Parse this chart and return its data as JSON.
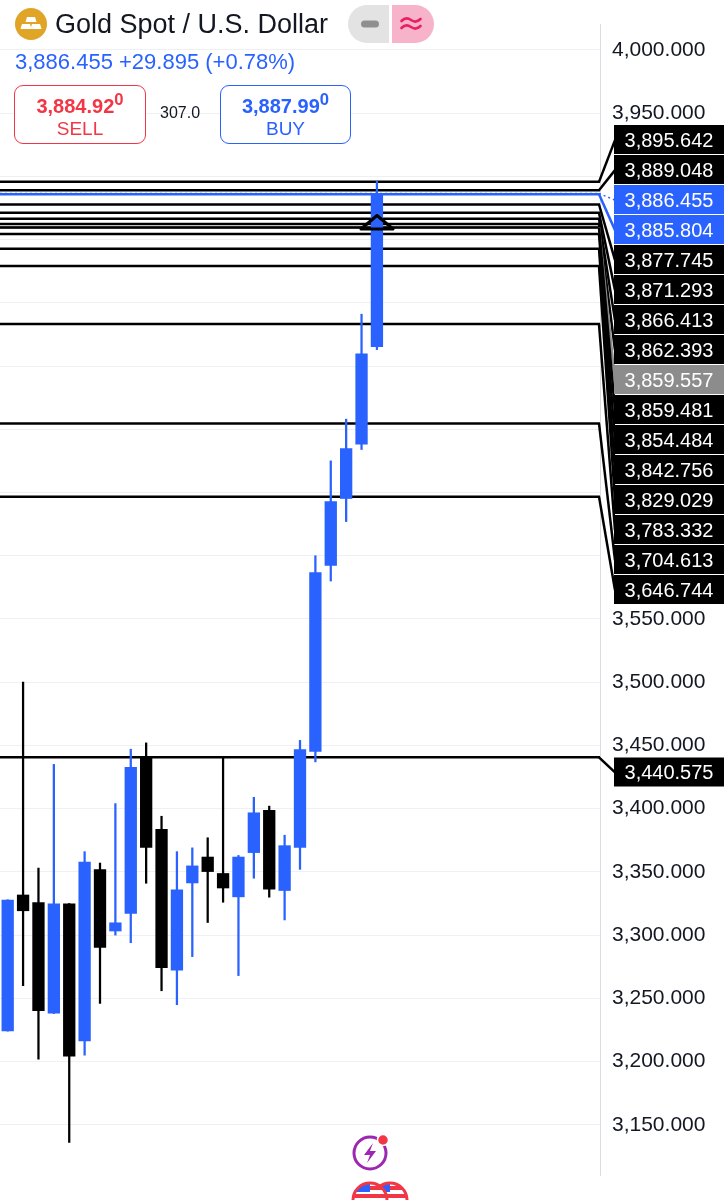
{
  "chart_data": {
    "type": "candlestick",
    "title": "Gold Spot / U.S. Dollar",
    "subtitle": "3,886.455 +29.895 (+0.78%)",
    "annotations": [
      "3,884.92$^{0}$",
      "SELL",
      "307.0",
      "3,887.99$^{0}$",
      "BUY"
    ],
    "categories": [
      null,
      null,
      null,
      null,
      null,
      null,
      null,
      null,
      null,
      null,
      null,
      null,
      null,
      null,
      null,
      null,
      null,
      null,
      null,
      null,
      null,
      null,
      null,
      null,
      null,
      null,
      null,
      null,
      null,
      null,
      null,
      null,
      null,
      null,
      null,
      null,
      null,
      null,
      null
    ],
    "ohlc": [
      [
        3224,
        3328,
        3224,
        3328
      ],
      [
        3332,
        3500,
        3260,
        3319
      ],
      [
        3326,
        3353,
        3202,
        3240
      ],
      [
        3238,
        3435,
        3238,
        3325
      ],
      [
        3325,
        3325,
        3136,
        3204
      ],
      [
        3216,
        3366,
        3205,
        3358
      ],
      [
        3352,
        3357,
        3246,
        3290
      ],
      [
        3303,
        3404,
        3300,
        3310
      ],
      [
        3317,
        3447,
        3294,
        3433
      ],
      [
        3441,
        3452,
        3341,
        3369
      ],
      [
        3384,
        3394,
        3256,
        3274
      ],
      [
        3272,
        3366,
        3245,
        3336
      ],
      [
        3341,
        3369,
        3283,
        3355
      ],
      [
        3362,
        3377,
        3310,
        3350
      ],
      [
        3349,
        3440,
        3326,
        3337
      ],
      [
        3330,
        3363,
        3268,
        3362
      ],
      [
        3365,
        3409,
        3345,
        3397
      ],
      [
        3399,
        3402,
        3330,
        3336
      ],
      [
        3335,
        3379,
        3312,
        3371
      ],
      [
        3369,
        3454,
        3352,
        3447
      ],
      [
        3445,
        3600,
        3437,
        3587
      ],
      [
        3592,
        3675,
        3580,
        3643
      ],
      [
        3645,
        3708,
        3627,
        3685
      ],
      [
        3688,
        3791,
        3684,
        3760
      ],
      [
        3765,
        3896,
        3763,
        3886
      ],
      null,
      null,
      null,
      null,
      null,
      null,
      null,
      null,
      null,
      null,
      null,
      null,
      null,
      null
    ],
    "colors": [
      "#2962ff",
      "#000000",
      "#000000",
      "#2962ff",
      "#000000",
      "#2962ff",
      "#000000",
      "#2962ff",
      "#2962ff",
      "#000000",
      "#000000",
      "#2962ff",
      "#2962ff",
      "#000000",
      "#000000",
      "#2962ff",
      "#2962ff",
      "#000000",
      "#2962ff",
      "#2962ff",
      "#2962ff",
      "#2962ff",
      "#2962ff",
      "#2962ff",
      "#2962ff",
      null,
      null,
      null,
      null,
      null,
      null,
      null,
      null,
      null,
      null,
      null,
      null,
      null,
      null
    ],
    "ylim": [
      3110,
      4020
    ],
    "yticks": [
      {
        "value": 3150,
        "label": "3,150.000"
      },
      {
        "value": 3200,
        "label": "3,200.000"
      },
      {
        "value": 3250,
        "label": "3,250.000"
      },
      {
        "value": 3300,
        "label": "3,300.000"
      },
      {
        "value": 3350,
        "label": "3,350.000"
      },
      {
        "value": 3400,
        "label": "3,400.000"
      },
      {
        "value": 3450,
        "label": "3,450.000"
      },
      {
        "value": 3500,
        "label": "3,500.000"
      },
      {
        "value": 3550,
        "label": "3,550.000"
      },
      {
        "value": 3600,
        "label": null
      },
      {
        "value": 3650,
        "label": null
      },
      {
        "value": 3700,
        "label": null
      },
      {
        "value": 3750,
        "label": null
      },
      {
        "value": 3800,
        "label": null
      },
      {
        "value": 3850,
        "label": null
      },
      {
        "value": 3900,
        "label": null
      },
      {
        "value": 3950,
        "label": "3,950.000"
      },
      {
        "value": 4000,
        "label": "4,000.000"
      }
    ],
    "grid": "y",
    "ref_lines": [
      {
        "axis": "y",
        "value": 3895.642,
        "label": "3,895.642",
        "color": "#000000"
      },
      {
        "axis": "y",
        "value": 3889.048,
        "label": "3,889.048",
        "color": "#000000"
      },
      {
        "axis": "y",
        "value": 3886.455,
        "label": "3,886.455",
        "color": "#2962ff",
        "line_style": "dotted"
      },
      {
        "axis": "y",
        "value": 3885.804,
        "label": "3,885.804",
        "color": "#2962ff"
      },
      {
        "axis": "y",
        "value": 3877.745,
        "label": "3,877.745",
        "color": "#000000"
      },
      {
        "axis": "y",
        "value": 3871.293,
        "label": "3,871.293",
        "color": "#000000"
      },
      {
        "axis": "y",
        "value": 3866.413,
        "label": "3,866.413",
        "color": "#000000"
      },
      {
        "axis": "y",
        "value": 3862.393,
        "label": "3,862.393",
        "color": "#000000"
      },
      {
        "axis": "y",
        "value": 3859.557,
        "label": "3,859.557",
        "color": "#8c8c8c"
      },
      {
        "axis": "y",
        "value": 3859.481,
        "label": "3,859.481",
        "color": "#000000"
      },
      {
        "axis": "y",
        "value": 3854.484,
        "label": "3,854.484",
        "color": "#000000"
      },
      {
        "axis": "y",
        "value": 3842.756,
        "label": "3,842.756",
        "color": "#000000"
      },
      {
        "axis": "y",
        "value": 3829.029,
        "label": "3,829.029",
        "color": "#000000"
      },
      {
        "axis": "y",
        "value": 3783.332,
        "label": "3,783.332",
        "color": "#000000"
      },
      {
        "axis": "y",
        "value": 3704.613,
        "label": "3,704.613",
        "color": "#000000"
      },
      {
        "axis": "y",
        "value": 3646.744,
        "label": "3,646.744",
        "color": "#000000"
      },
      {
        "axis": "y",
        "value": 3440.575,
        "label": "3,440.575",
        "color": "#000000"
      }
    ]
  }
}
